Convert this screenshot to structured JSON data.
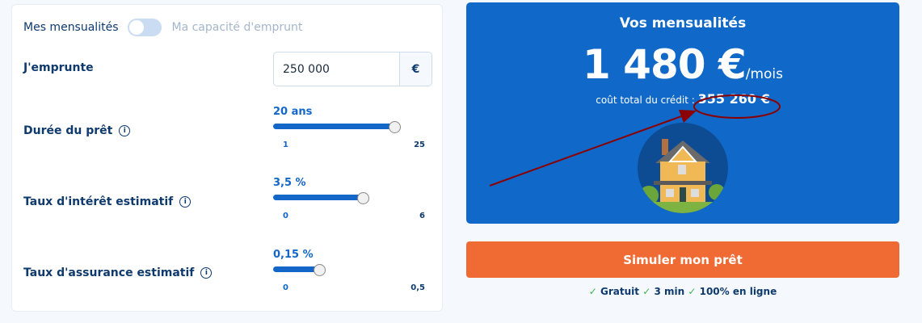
{
  "toggle": {
    "left_label": "Mes mensualités",
    "right_label": "Ma capacité d'emprunt",
    "state": "off"
  },
  "borrow": {
    "label": "J'emprunte",
    "value": "250 000",
    "currency": "€"
  },
  "sliders": [
    {
      "label": "Durée du prêt",
      "value_text": "20 ans",
      "value": 20,
      "min": 1,
      "max": 25,
      "min_label": "1",
      "max_label": "25"
    },
    {
      "label": "Taux d'intérêt estimatif",
      "value_text": "3,5 %",
      "value": 3.5,
      "min": 0,
      "max": 6,
      "min_label": "0",
      "max_label": "6"
    },
    {
      "label": "Taux d'assurance estimatif",
      "value_text": "0,15 %",
      "value": 0.15,
      "min": 0,
      "max": 0.5,
      "min_label": "0",
      "max_label": "0,5"
    }
  ],
  "result": {
    "title": "Vos mensualités",
    "monthly": "1 480 €",
    "per": "/mois",
    "cost_label": "coût total du crédit :",
    "cost_value": "355 260 €"
  },
  "cta": "Simuler mon prêt",
  "checks": [
    "Gratuit",
    "3 min",
    "100% en ligne"
  ],
  "colors": {
    "primary": "#1068c9",
    "cta": "#f06a33",
    "annotation": "#8b0000"
  }
}
